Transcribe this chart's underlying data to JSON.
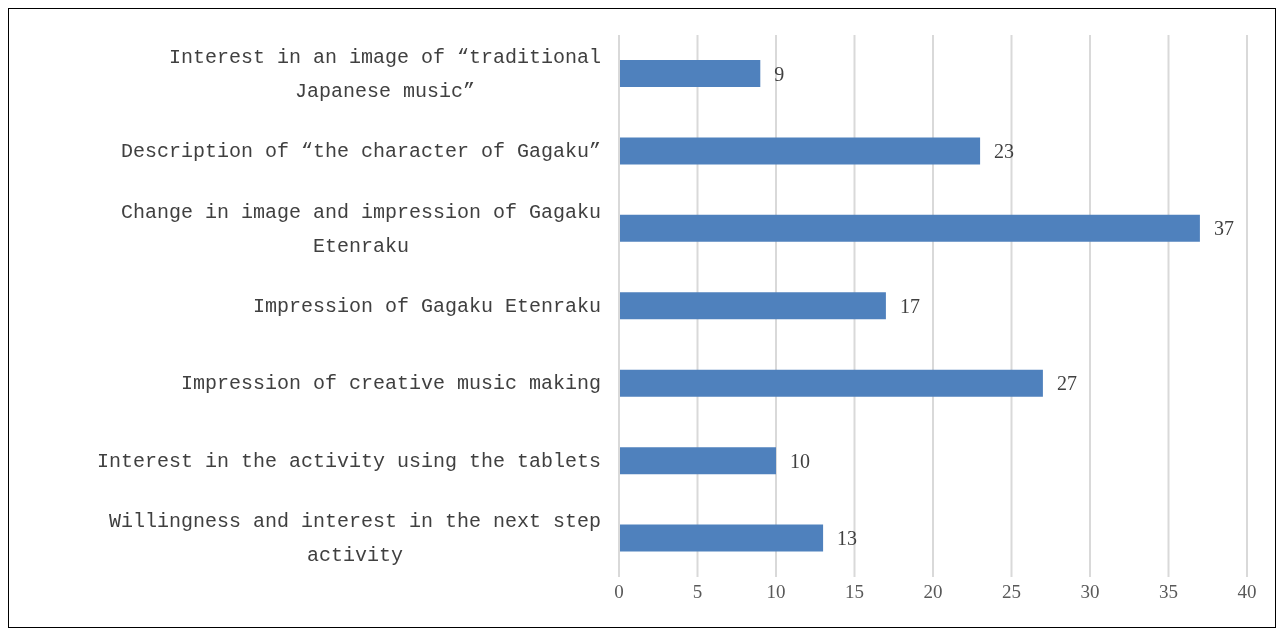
{
  "chart_data": {
    "type": "bar",
    "orientation": "horizontal",
    "categories": [
      "Interest in an image of “traditional Japanese music”",
      "Description of “the character of Gagaku”",
      "Change in image and impression of Gagaku Etenraku",
      "Impression of Gagaku Etenraku",
      "Impression of creative music making",
      "Interest in the activity using the tablets",
      "Willingness and interest in the next step activity"
    ],
    "values": [
      9,
      23,
      37,
      17,
      27,
      10,
      13
    ],
    "color": "#4f81bd",
    "xlim": [
      0,
      40
    ],
    "xticks": [
      0,
      5,
      10,
      15,
      20,
      25,
      30,
      35,
      40
    ],
    "grid": "x",
    "data_labels": true,
    "legend": false
  }
}
